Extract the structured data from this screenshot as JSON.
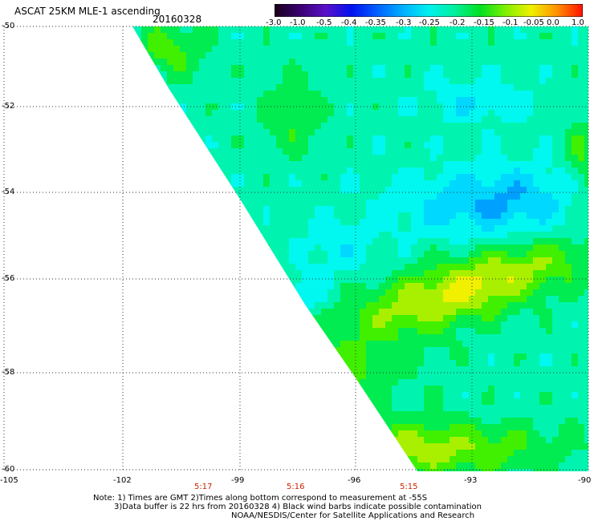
{
  "header": {
    "title": "ASCAT 25KM MLE-1 ascending",
    "date": "20160328"
  },
  "colorbar": {
    "labels": [
      "-3.0",
      "-1.0",
      "-0.5",
      "-0.4",
      "-0.35",
      "-0.3",
      "-0.25",
      "-0.2",
      "-0.15",
      "-0.1",
      "-0.05",
      "0.0",
      "1.0"
    ],
    "colors": [
      "#1a001a",
      "#3a0070",
      "#5a10c8",
      "#0010f0",
      "#0060ff",
      "#00b0ff",
      "#00f0f0",
      "#00f0a0",
      "#00e020",
      "#80f000",
      "#f0f000",
      "#ff9000",
      "#ff1000"
    ]
  },
  "map": {
    "lat_labels": [
      "-50",
      "-52",
      "-54",
      "-56",
      "-58",
      "-60"
    ],
    "lon_labels": [
      "-105",
      "-102",
      "-99",
      "-96",
      "-93",
      "-90"
    ],
    "times": [
      "5:17",
      "5:16",
      "5:15"
    ]
  },
  "notes": [
    "Note: 1) Times are GMT 2)Times along bottom correspond to measurement at -55S",
    "3)Data buffer is 22 hrs from 20160328 4) Black wind barbs indicate possible contamination",
    "NOAA/NESDIS/Center for Satellite Applications and Research"
  ]
}
